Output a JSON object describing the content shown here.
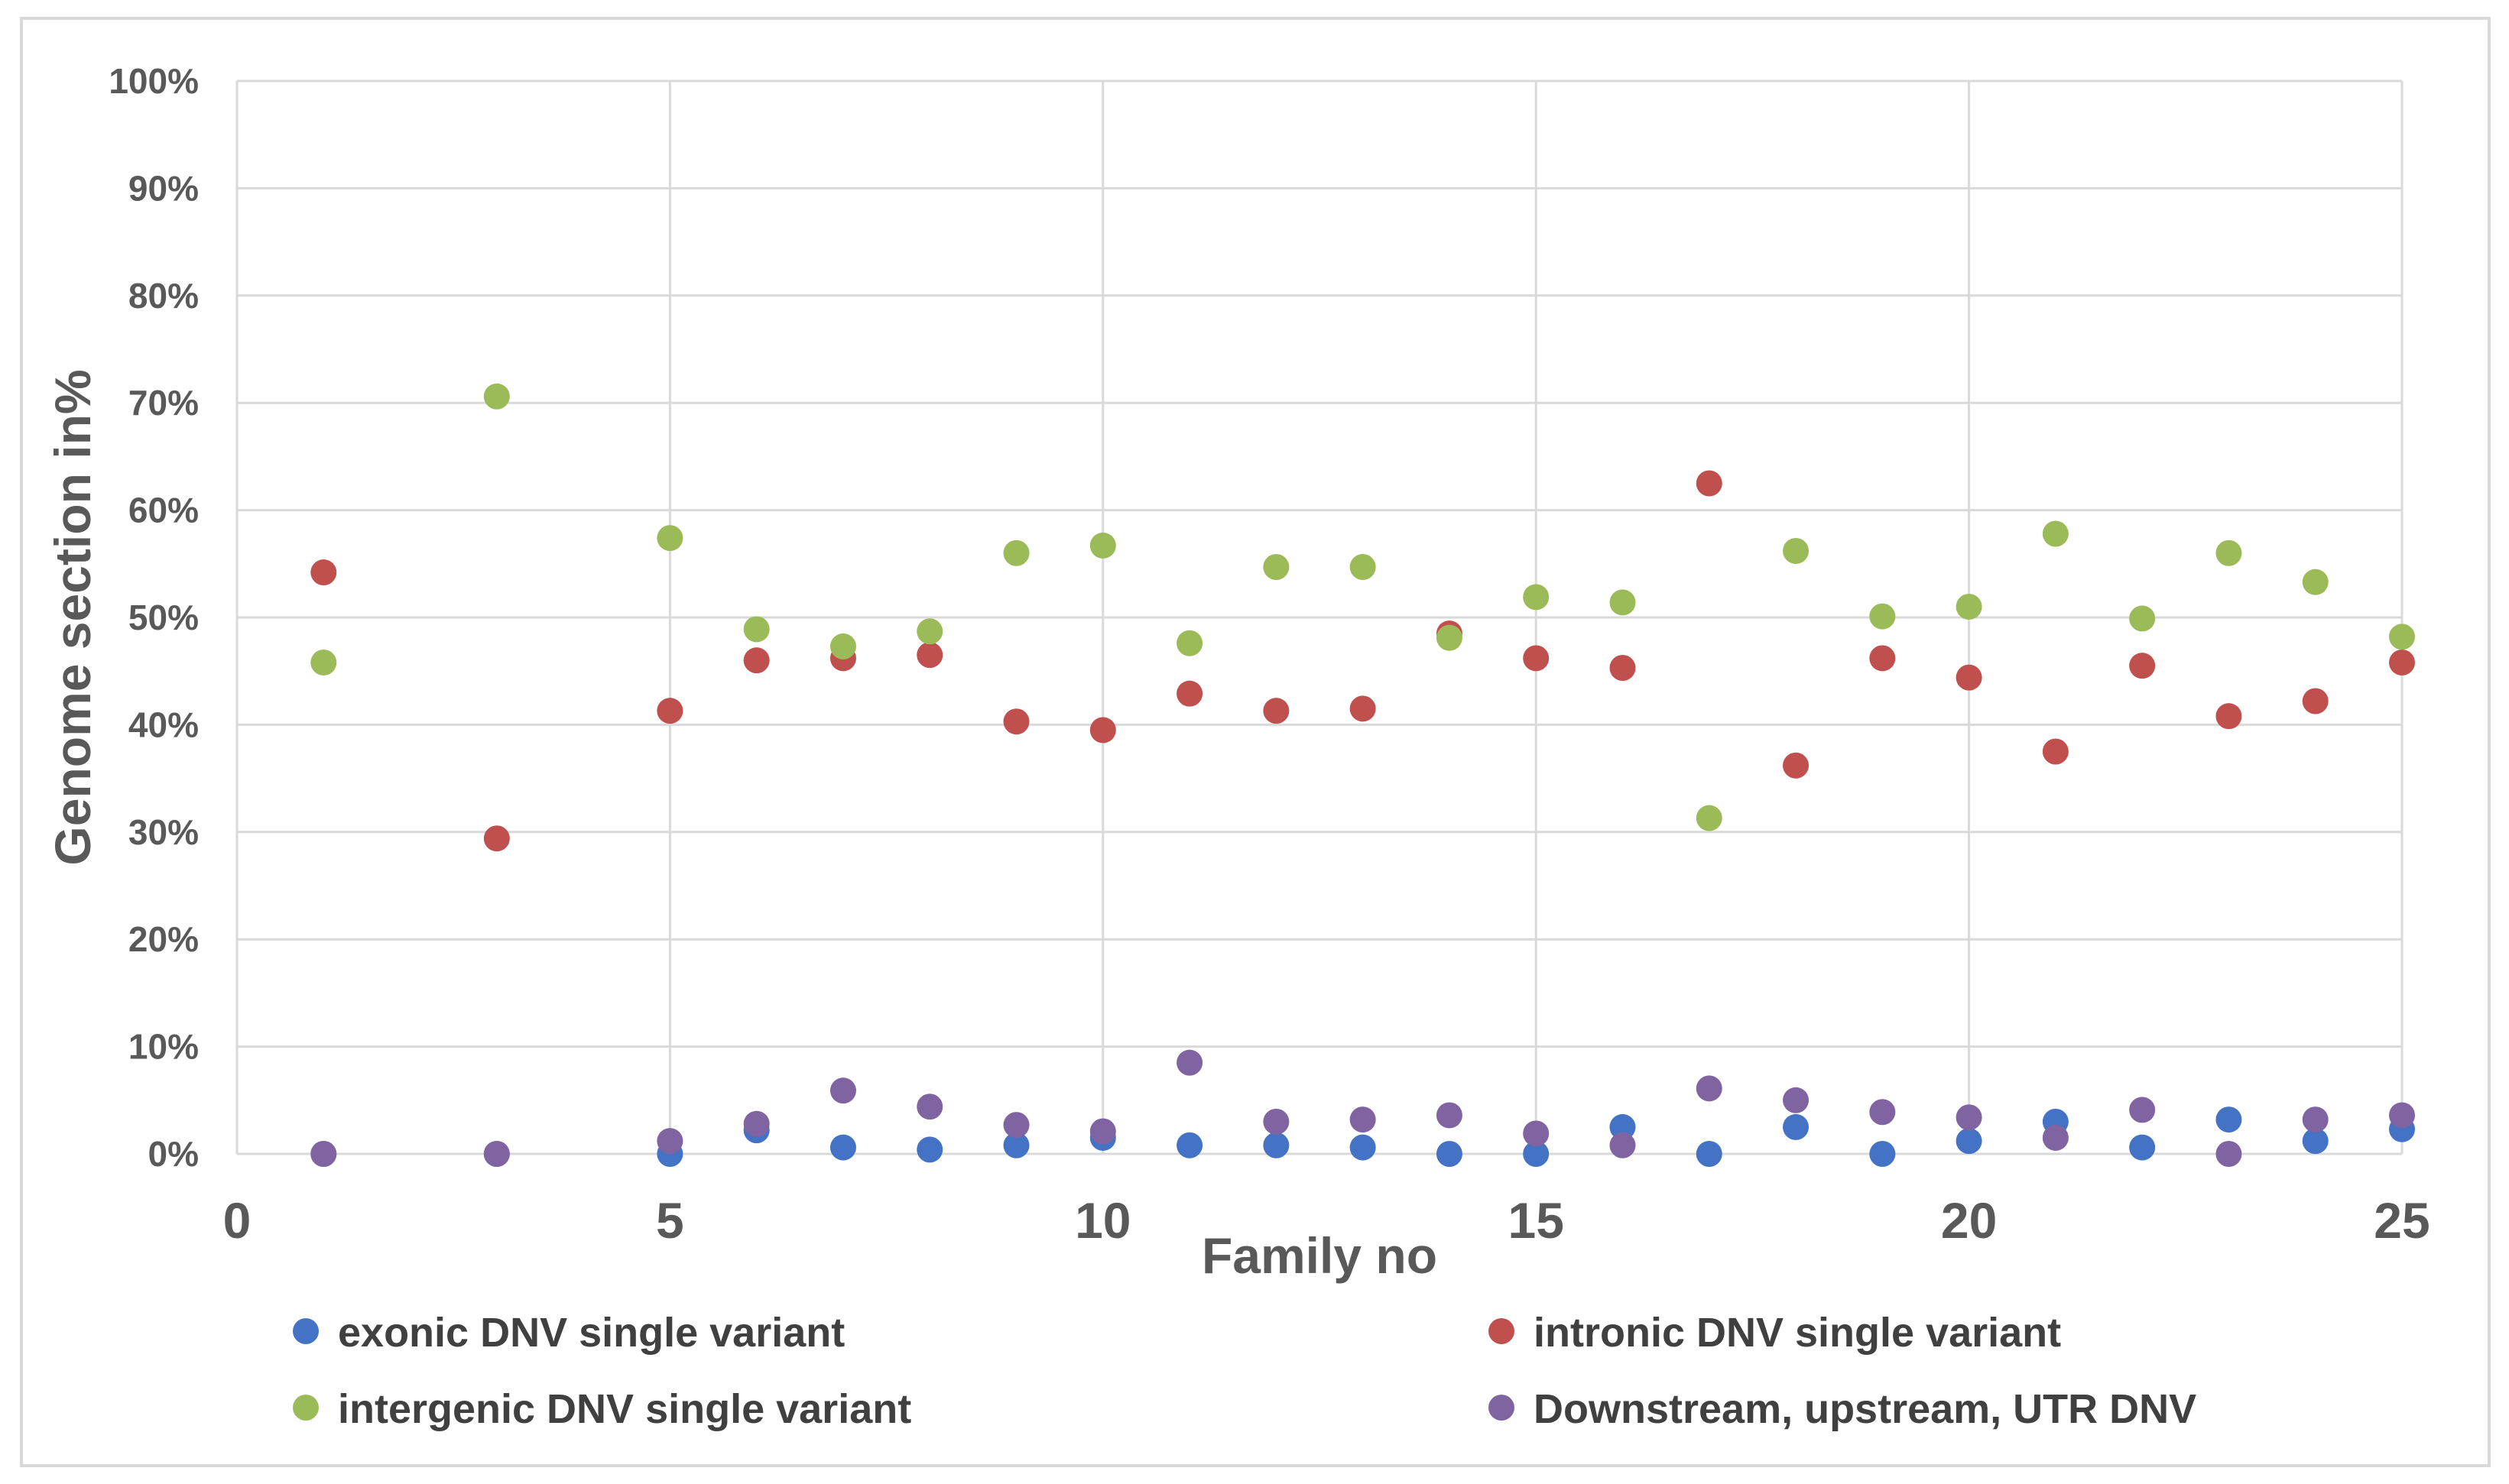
{
  "chart_data": {
    "type": "scatter",
    "title": "",
    "xlabel": "Family no",
    "ylabel": "Genome section in%",
    "xlim": [
      0,
      25
    ],
    "ylim": [
      0,
      100
    ],
    "x_ticks": [
      0,
      5,
      10,
      15,
      20,
      25
    ],
    "x_tick_labels": [
      "0",
      "5",
      "10",
      "15",
      "20",
      "25"
    ],
    "y_ticks": [
      0,
      10,
      20,
      30,
      40,
      50,
      60,
      70,
      80,
      90,
      100
    ],
    "y_tick_labels": [
      "0%",
      "10%",
      "20%",
      "30%",
      "40%",
      "50%",
      "60%",
      "70%",
      "80%",
      "90%",
      "100%"
    ],
    "grid": true,
    "legend_position": "bottom",
    "series": [
      {
        "name": "exonic DNV single variant",
        "color": "#4472c4",
        "points": [
          [
            1,
            0
          ],
          [
            3,
            0
          ],
          [
            5,
            0
          ],
          [
            6,
            2.2
          ],
          [
            7,
            0.6
          ],
          [
            8,
            0.4
          ],
          [
            9,
            0.8
          ],
          [
            10,
            1.5
          ],
          [
            11,
            0.8
          ],
          [
            12,
            0.8
          ],
          [
            13,
            0.6
          ],
          [
            14,
            0
          ],
          [
            15,
            0
          ],
          [
            16,
            2.5
          ],
          [
            17,
            0
          ],
          [
            18,
            2.5
          ],
          [
            19,
            0
          ],
          [
            20,
            1.2
          ],
          [
            21,
            3
          ],
          [
            22,
            0.6
          ],
          [
            23,
            3.2
          ],
          [
            24,
            1.2
          ],
          [
            25,
            2.3
          ]
        ]
      },
      {
        "name": "intronic DNV single variant",
        "color": "#c0504d",
        "points": [
          [
            1,
            54.2
          ],
          [
            3,
            29.4
          ],
          [
            5,
            41.3
          ],
          [
            6,
            46
          ],
          [
            7,
            46.2
          ],
          [
            8,
            46.5
          ],
          [
            9,
            40.3
          ],
          [
            10,
            39.5
          ],
          [
            11,
            42.9
          ],
          [
            12,
            41.3
          ],
          [
            13,
            41.5
          ],
          [
            14,
            48.5
          ],
          [
            15,
            46.2
          ],
          [
            16,
            45.3
          ],
          [
            17,
            62.5
          ],
          [
            18,
            36.2
          ],
          [
            19,
            46.2
          ],
          [
            20,
            44.4
          ],
          [
            21,
            37.5
          ],
          [
            22,
            45.5
          ],
          [
            23,
            40.8
          ],
          [
            24,
            42.2
          ],
          [
            25,
            45.8
          ]
        ]
      },
      {
        "name": "intergenic DNV single variant",
        "color": "#9bbb59",
        "points": [
          [
            1,
            45.8
          ],
          [
            3,
            70.6
          ],
          [
            5,
            57.4
          ],
          [
            6,
            48.9
          ],
          [
            7,
            47.3
          ],
          [
            8,
            48.7
          ],
          [
            9,
            56
          ],
          [
            10,
            56.7
          ],
          [
            11,
            47.6
          ],
          [
            12,
            54.7
          ],
          [
            13,
            54.7
          ],
          [
            14,
            48.1
          ],
          [
            15,
            51.9
          ],
          [
            16,
            51.4
          ],
          [
            17,
            31.3
          ],
          [
            18,
            56.2
          ],
          [
            19,
            50.1
          ],
          [
            20,
            51
          ],
          [
            21,
            57.8
          ],
          [
            22,
            49.9
          ],
          [
            23,
            56
          ],
          [
            24,
            53.3
          ],
          [
            25,
            48.2
          ]
        ]
      },
      {
        "name": "Downstream, upstream, UTR DNV",
        "color": "#8064a2",
        "points": [
          [
            1,
            0
          ],
          [
            3,
            0
          ],
          [
            5,
            1.2
          ],
          [
            6,
            2.8
          ],
          [
            7,
            5.9
          ],
          [
            8,
            4.4
          ],
          [
            9,
            2.7
          ],
          [
            10,
            2.1
          ],
          [
            11,
            8.5
          ],
          [
            12,
            3
          ],
          [
            13,
            3.2
          ],
          [
            14,
            3.6
          ],
          [
            15,
            1.9
          ],
          [
            16,
            0.8
          ],
          [
            17,
            6.1
          ],
          [
            18,
            5
          ],
          [
            19,
            3.9
          ],
          [
            20,
            3.4
          ],
          [
            21,
            1.5
          ],
          [
            22,
            4.1
          ],
          [
            23,
            0
          ],
          [
            24,
            3.2
          ],
          [
            25,
            3.6
          ]
        ]
      }
    ]
  }
}
